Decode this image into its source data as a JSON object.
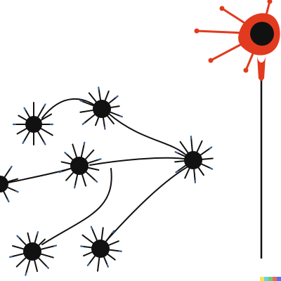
{
  "colors": {
    "background": "#ffffff",
    "neuron_body": "#111111",
    "axon": "#111111",
    "dendrite_tip": "#3b5c8f",
    "highlight_neuron": "#e23a1e",
    "highlight_nucleus": "#111111"
  },
  "network": {
    "neurons": [
      {
        "id": "n1"
      },
      {
        "id": "n2"
      },
      {
        "id": "n3"
      },
      {
        "id": "n4"
      },
      {
        "id": "n5"
      },
      {
        "id": "n6"
      },
      {
        "id": "n7"
      }
    ],
    "connections": [
      {
        "from": "n1",
        "to": "n2"
      },
      {
        "from": "n2",
        "to": "n5"
      },
      {
        "from": "n3",
        "to": "n5"
      },
      {
        "from": "n4",
        "to": "n3"
      },
      {
        "from": "n3",
        "to": "n6"
      },
      {
        "from": "n7",
        "to": "n5"
      }
    ]
  },
  "highlight": {
    "id": "red-neuron"
  },
  "watermark": {
    "colors": [
      "#f7e64a",
      "#6ad0e8",
      "#6bd06a",
      "#f06a5a",
      "#5a6ef0"
    ]
  }
}
